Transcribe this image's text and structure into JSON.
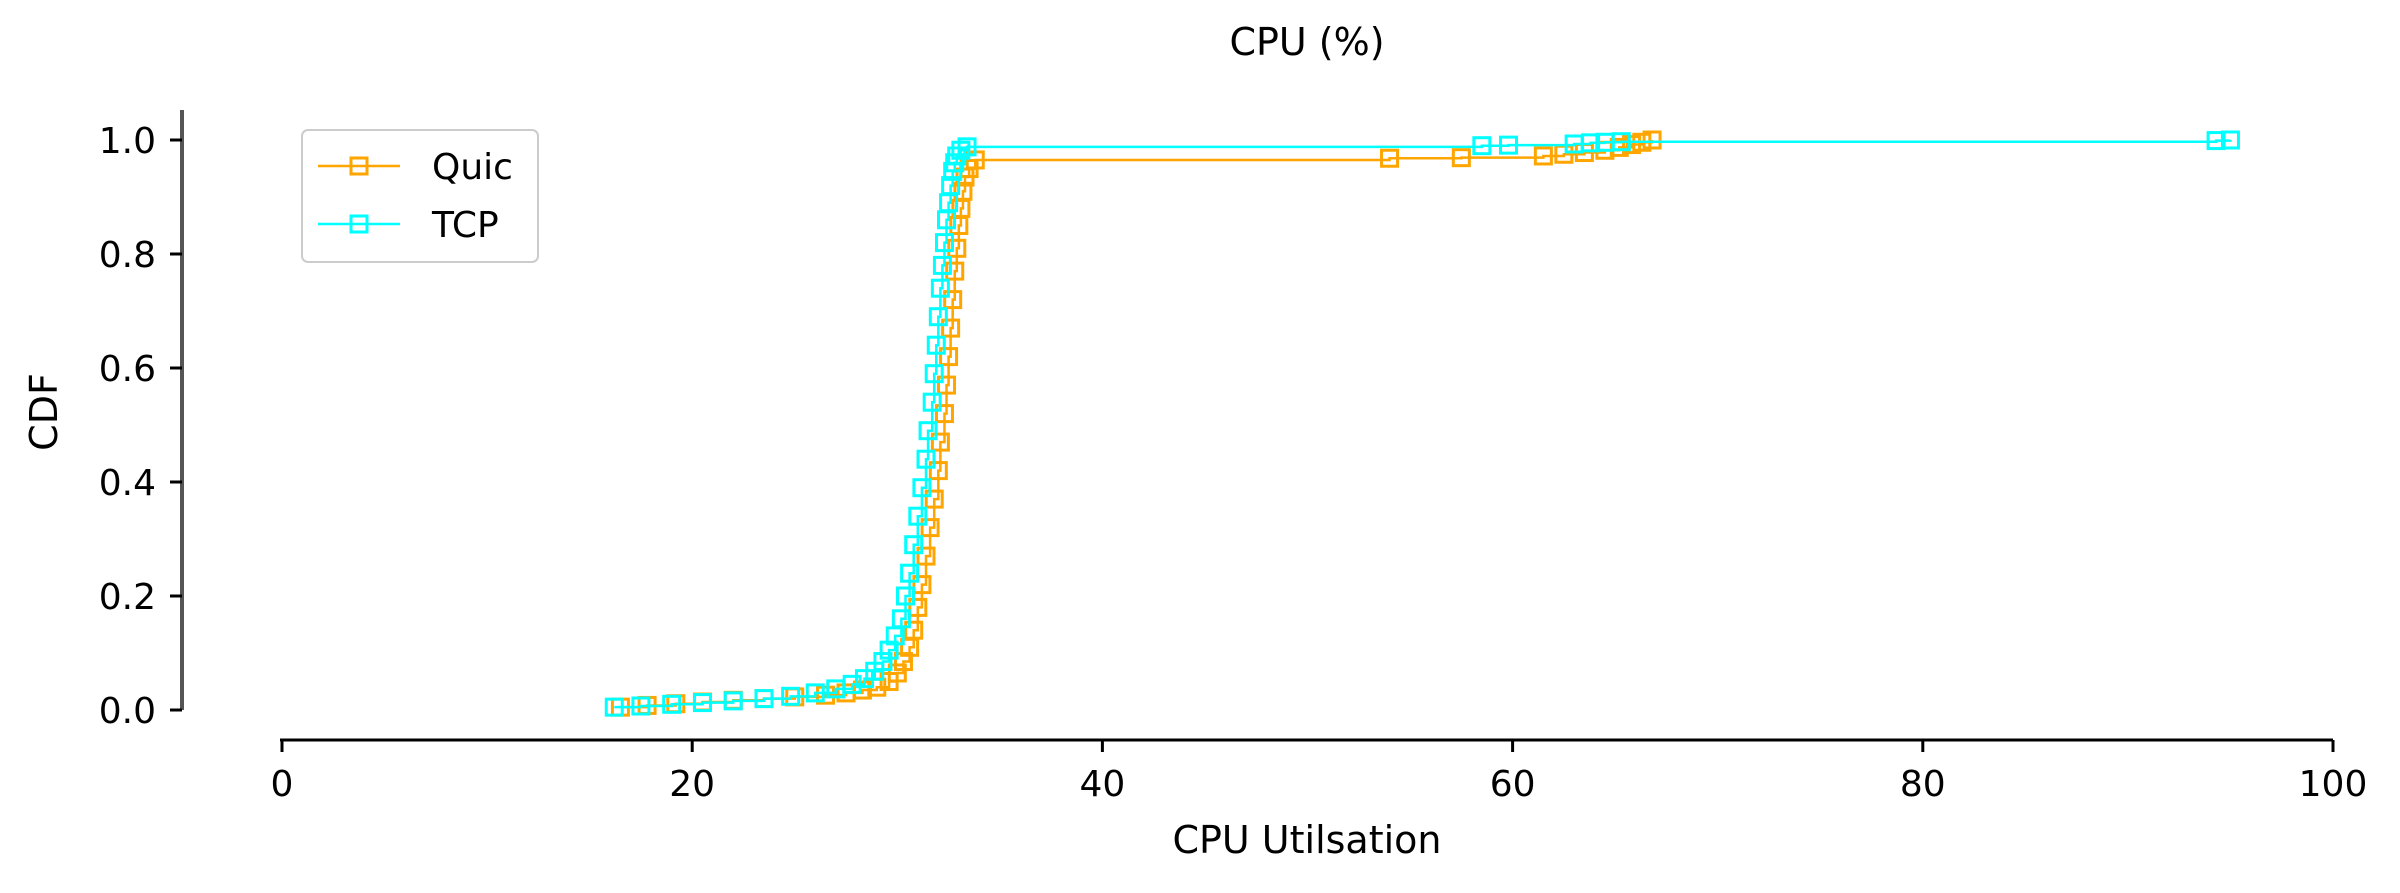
{
  "chart_data": {
    "type": "line",
    "title": "CPU (%)",
    "xlabel": "CPU Utilsation",
    "ylabel": "CDF",
    "xlim": [
      0,
      100
    ],
    "ylim": [
      0,
      1.0
    ],
    "xticks": [
      0,
      20,
      40,
      60,
      80,
      100
    ],
    "yticks": [
      0.0,
      0.2,
      0.4,
      0.6,
      0.8,
      1.0
    ],
    "xtick_labels": [
      "0",
      "20",
      "40",
      "60",
      "80",
      "100"
    ],
    "ytick_labels": [
      "0.0",
      "0.2",
      "0.4",
      "0.6",
      "0.8",
      "1.0"
    ],
    "grid": false,
    "legend_position": "top-left",
    "marker": "square",
    "series": [
      {
        "name": "Quic",
        "color": "#FFA500",
        "points": [
          [
            16.5,
            0.005
          ],
          [
            17.8,
            0.008
          ],
          [
            19.2,
            0.011
          ],
          [
            20.5,
            0.014
          ],
          [
            22.0,
            0.017
          ],
          [
            23.5,
            0.02
          ],
          [
            25.0,
            0.023
          ],
          [
            26.5,
            0.026
          ],
          [
            27.5,
            0.03
          ],
          [
            28.3,
            0.035
          ],
          [
            29.0,
            0.04
          ],
          [
            29.6,
            0.05
          ],
          [
            30.0,
            0.065
          ],
          [
            30.3,
            0.085
          ],
          [
            30.6,
            0.11
          ],
          [
            30.8,
            0.14
          ],
          [
            31.0,
            0.18
          ],
          [
            31.2,
            0.22
          ],
          [
            31.4,
            0.27
          ],
          [
            31.6,
            0.32
          ],
          [
            31.8,
            0.37
          ],
          [
            32.0,
            0.42
          ],
          [
            32.1,
            0.47
          ],
          [
            32.3,
            0.52
          ],
          [
            32.4,
            0.57
          ],
          [
            32.5,
            0.62
          ],
          [
            32.6,
            0.67
          ],
          [
            32.7,
            0.72
          ],
          [
            32.8,
            0.77
          ],
          [
            32.9,
            0.81
          ],
          [
            33.0,
            0.85
          ],
          [
            33.1,
            0.88
          ],
          [
            33.2,
            0.91
          ],
          [
            33.3,
            0.935
          ],
          [
            33.5,
            0.95
          ],
          [
            33.8,
            0.965
          ],
          [
            54.0,
            0.968
          ],
          [
            57.5,
            0.969
          ],
          [
            61.5,
            0.972
          ],
          [
            62.5,
            0.975
          ],
          [
            63.5,
            0.978
          ],
          [
            64.5,
            0.982
          ],
          [
            65.2,
            0.987
          ],
          [
            65.8,
            0.992
          ],
          [
            66.3,
            0.996
          ],
          [
            66.8,
            1.0
          ]
        ]
      },
      {
        "name": "TCP",
        "color": "#00FFFF",
        "points": [
          [
            16.2,
            0.005
          ],
          [
            17.5,
            0.007
          ],
          [
            19.0,
            0.01
          ],
          [
            20.5,
            0.013
          ],
          [
            22.0,
            0.016
          ],
          [
            23.5,
            0.02
          ],
          [
            24.8,
            0.024
          ],
          [
            26.0,
            0.03
          ],
          [
            27.0,
            0.037
          ],
          [
            27.8,
            0.045
          ],
          [
            28.4,
            0.055
          ],
          [
            28.9,
            0.068
          ],
          [
            29.3,
            0.085
          ],
          [
            29.6,
            0.105
          ],
          [
            29.9,
            0.13
          ],
          [
            30.2,
            0.16
          ],
          [
            30.4,
            0.2
          ],
          [
            30.6,
            0.24
          ],
          [
            30.8,
            0.29
          ],
          [
            31.0,
            0.34
          ],
          [
            31.2,
            0.39
          ],
          [
            31.4,
            0.44
          ],
          [
            31.5,
            0.49
          ],
          [
            31.7,
            0.54
          ],
          [
            31.8,
            0.59
          ],
          [
            31.9,
            0.64
          ],
          [
            32.0,
            0.69
          ],
          [
            32.1,
            0.74
          ],
          [
            32.2,
            0.78
          ],
          [
            32.3,
            0.82
          ],
          [
            32.4,
            0.86
          ],
          [
            32.5,
            0.89
          ],
          [
            32.6,
            0.92
          ],
          [
            32.7,
            0.945
          ],
          [
            32.8,
            0.96
          ],
          [
            32.9,
            0.972
          ],
          [
            33.1,
            0.982
          ],
          [
            33.4,
            0.988
          ],
          [
            58.5,
            0.99
          ],
          [
            59.8,
            0.991
          ],
          [
            63.0,
            0.993
          ],
          [
            63.8,
            0.995
          ],
          [
            64.5,
            0.996
          ],
          [
            65.3,
            0.997
          ],
          [
            94.3,
            0.999
          ],
          [
            95.0,
            1.0
          ]
        ]
      }
    ]
  }
}
